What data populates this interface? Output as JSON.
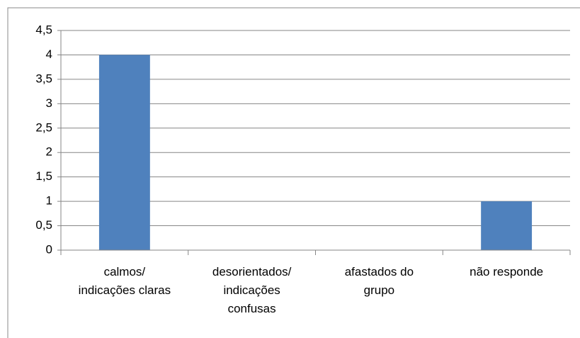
{
  "chart_data": {
    "type": "bar",
    "categories": [
      "calmos/ indicações claras",
      "desorientados/ indicações confusas",
      "afastados do grupo",
      "não responde"
    ],
    "values": [
      4,
      0,
      0,
      1
    ],
    "color": "#4f81bd",
    "ylim": [
      0,
      4.5
    ],
    "yticks": [
      0,
      {
        "value": 0.5,
        "label": "0,5"
      },
      1,
      {
        "value": 1.5,
        "label": "1,5"
      },
      2,
      {
        "value": 2.5,
        "label": "2,5"
      },
      3,
      {
        "value": 3.5,
        "label": "3,5"
      },
      4,
      {
        "value": 4.5,
        "label": "4,5"
      }
    ],
    "grid": true
  }
}
